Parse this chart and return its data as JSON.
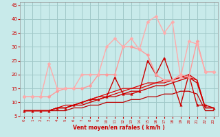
{
  "bg_color": "#c8eaea",
  "grid_color": "#a0c8c8",
  "xlabel": "Vent moyen/en rafales ( km/h )",
  "xlabel_color": "#cc0000",
  "tick_color": "#cc0000",
  "xlim": [
    -0.5,
    23.5
  ],
  "ylim": [
    5,
    46
  ],
  "yticks": [
    5,
    10,
    15,
    20,
    25,
    30,
    35,
    40,
    45
  ],
  "xticks": [
    0,
    1,
    2,
    3,
    4,
    5,
    6,
    7,
    8,
    9,
    10,
    11,
    12,
    13,
    14,
    15,
    16,
    17,
    18,
    19,
    20,
    21,
    22,
    23
  ],
  "series": [
    {
      "x": [
        0,
        1,
        2,
        3,
        4,
        5,
        6,
        7,
        8,
        9,
        10,
        11,
        12,
        13,
        14,
        15,
        16,
        17,
        18,
        19,
        20,
        21,
        22,
        23
      ],
      "y": [
        7,
        7,
        7,
        7,
        8,
        9,
        9,
        10,
        11,
        12,
        13,
        14,
        15,
        15,
        16,
        17,
        17,
        18,
        18,
        19,
        19,
        18,
        8,
        8
      ],
      "color": "#dd0000",
      "lw": 0.9,
      "marker": null,
      "ms": 0
    },
    {
      "x": [
        0,
        1,
        2,
        3,
        4,
        5,
        6,
        7,
        8,
        9,
        10,
        11,
        12,
        13,
        14,
        15,
        16,
        17,
        18,
        19,
        20,
        21,
        22,
        23
      ],
      "y": [
        7,
        7,
        7,
        7,
        8,
        8,
        9,
        10,
        11,
        12,
        12,
        13,
        14,
        15,
        15,
        16,
        17,
        17,
        18,
        19,
        20,
        18,
        8,
        8
      ],
      "color": "#dd0000",
      "lw": 0.9,
      "marker": null,
      "ms": 0
    },
    {
      "x": [
        0,
        1,
        2,
        3,
        4,
        5,
        6,
        7,
        8,
        9,
        10,
        11,
        12,
        13,
        14,
        15,
        16,
        17,
        18,
        19,
        20,
        21,
        22,
        23
      ],
      "y": [
        7,
        7,
        7,
        7,
        8,
        8,
        9,
        9,
        10,
        11,
        12,
        12,
        13,
        14,
        14,
        15,
        16,
        16,
        17,
        18,
        19,
        17,
        8,
        8
      ],
      "color": "#cc0000",
      "lw": 1.0,
      "marker": null,
      "ms": 0
    },
    {
      "x": [
        0,
        1,
        2,
        3,
        4,
        5,
        6,
        7,
        8,
        9,
        10,
        11,
        12,
        13,
        14,
        15,
        16,
        17,
        18,
        19,
        20,
        21,
        22,
        23
      ],
      "y": [
        7,
        7,
        7,
        7,
        7,
        7,
        8,
        8,
        9,
        9,
        10,
        10,
        10,
        11,
        11,
        12,
        12,
        13,
        13,
        14,
        14,
        13,
        7,
        7
      ],
      "color": "#bb0000",
      "lw": 0.9,
      "marker": null,
      "ms": 0
    },
    {
      "x": [
        0,
        1,
        2,
        3,
        4,
        5,
        6,
        7,
        8,
        9,
        10,
        11,
        12,
        13,
        14,
        15,
        16,
        17,
        18,
        19,
        20,
        21,
        22,
        23
      ],
      "y": [
        7,
        7,
        7,
        7,
        8,
        8,
        9,
        10,
        11,
        11,
        12,
        19,
        13,
        13,
        14,
        25,
        20,
        26,
        18,
        9,
        20,
        9,
        9,
        8
      ],
      "color": "#cc0000",
      "lw": 1.0,
      "marker": "^",
      "ms": 2.5
    },
    {
      "x": [
        0,
        1,
        2,
        3,
        4,
        5,
        6,
        7,
        8,
        9,
        10,
        11,
        12,
        13,
        14,
        15,
        16,
        17,
        18,
        19,
        20,
        21,
        22,
        23
      ],
      "y": [
        12,
        12,
        12,
        12,
        14,
        15,
        15,
        15,
        16,
        20,
        20,
        20,
        30,
        30,
        29,
        27,
        20,
        18,
        18,
        20,
        19,
        32,
        21,
        21
      ],
      "color": "#ff9999",
      "lw": 1.0,
      "marker": "D",
      "ms": 2.5
    },
    {
      "x": [
        0,
        1,
        2,
        3,
        4,
        5,
        6,
        7,
        8,
        9,
        10,
        11,
        12,
        13,
        14,
        15,
        16,
        17,
        18,
        19,
        20,
        21,
        22,
        23
      ],
      "y": [
        12,
        12,
        12,
        24,
        15,
        15,
        15,
        20,
        20,
        20,
        30,
        33,
        30,
        33,
        29,
        39,
        41,
        35,
        39,
        19,
        32,
        31,
        21,
        21
      ],
      "color": "#ffaaaa",
      "lw": 1.0,
      "marker": "D",
      "ms": 2.5
    }
  ]
}
